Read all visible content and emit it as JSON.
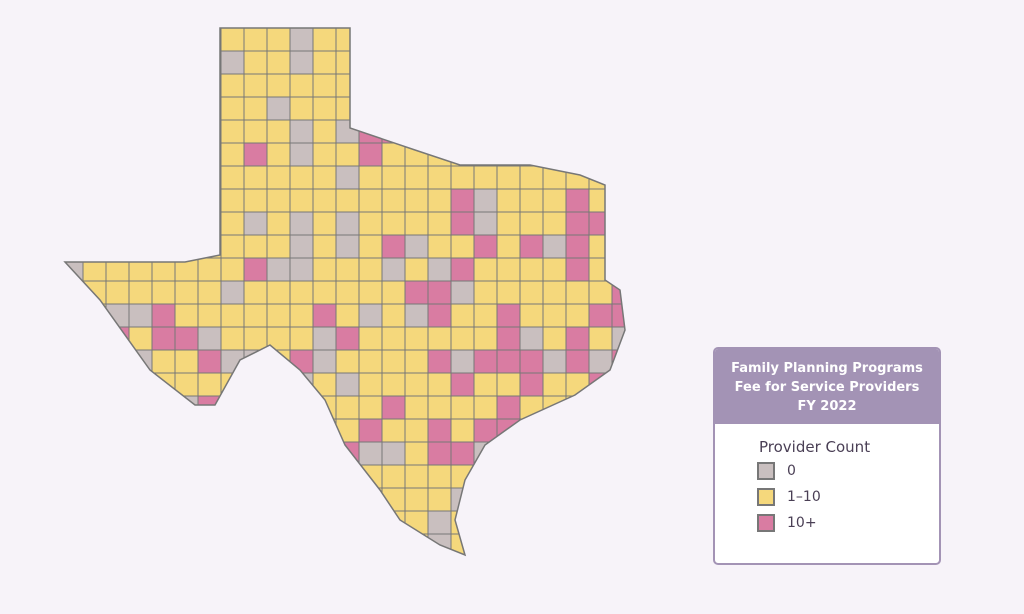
{
  "legend": {
    "title_lines": [
      "Family Planning Programs",
      "Fee for Service Providers",
      "FY 2022"
    ],
    "subtitle": "Provider Count",
    "items": [
      {
        "label": "0",
        "color": "#c9bfbf"
      },
      {
        "label": "1–10",
        "color": "#f5d87c"
      },
      {
        "label": "10+",
        "color": "#d97ca2"
      }
    ]
  }
}
